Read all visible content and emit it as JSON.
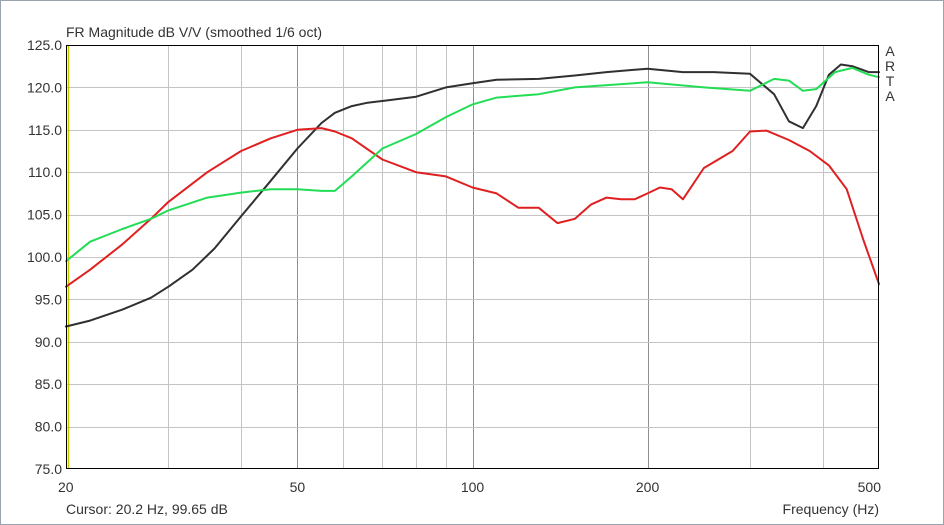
{
  "window": {
    "title": "FR Magnitude dB V/V (smoothed 1/6 oct)",
    "cursor_readout": "Cursor: 20.2 Hz, 99.65 dB",
    "brand_letters": [
      "A",
      "R",
      "T",
      "A"
    ]
  },
  "chart_data": {
    "type": "line",
    "title": "FR Magnitude dB V/V (smoothed 1/6 oct)",
    "xlabel": "Frequency (Hz)",
    "ylabel": "",
    "x_scale": "log",
    "xlim": [
      20,
      500
    ],
    "ylim": [
      75,
      125
    ],
    "grid": true,
    "x_ticks": [
      20,
      50,
      100,
      200,
      500
    ],
    "x_tick_labels": [
      "20",
      "50",
      "100",
      "200",
      "500"
    ],
    "y_ticks": [
      75,
      80,
      85,
      90,
      95,
      100,
      105,
      110,
      115,
      120,
      125
    ],
    "y_tick_labels": [
      "75.0",
      "80.0",
      "85.0",
      "90.0",
      "95.0",
      "100.0",
      "105.0",
      "110.0",
      "115.0",
      "120.0",
      "125.0"
    ],
    "cursor": {
      "x": 20.2,
      "color": "#c8c800"
    },
    "series": [
      {
        "color": "#303030",
        "x": [
          20,
          22,
          25,
          28,
          30,
          33,
          36,
          40,
          45,
          50,
          55,
          58,
          62,
          66,
          70,
          80,
          90,
          100,
          110,
          130,
          150,
          170,
          200,
          230,
          260,
          300,
          330,
          350,
          370,
          390,
          410,
          430,
          450,
          480,
          500
        ],
        "y": [
          91.8,
          92.5,
          93.8,
          95.2,
          96.5,
          98.5,
          101.0,
          104.8,
          109.0,
          112.8,
          115.8,
          117.0,
          117.8,
          118.2,
          118.4,
          118.9,
          120.0,
          120.5,
          120.9,
          121.0,
          121.4,
          121.8,
          122.2,
          121.8,
          121.8,
          121.6,
          119.2,
          116.0,
          115.2,
          117.8,
          121.5,
          122.7,
          122.5,
          121.8,
          121.8
        ]
      },
      {
        "color": "#e02020",
        "x": [
          20,
          22,
          25,
          28,
          30,
          35,
          40,
          45,
          50,
          55,
          58,
          62,
          70,
          80,
          90,
          100,
          110,
          120,
          130,
          140,
          150,
          160,
          170,
          180,
          190,
          200,
          210,
          220,
          230,
          250,
          280,
          300,
          320,
          350,
          380,
          410,
          440,
          470,
          500
        ],
        "y": [
          96.5,
          98.5,
          101.5,
          104.5,
          106.5,
          110.0,
          112.5,
          114.0,
          115.0,
          115.2,
          114.8,
          114.0,
          111.5,
          110.0,
          109.5,
          108.2,
          107.5,
          105.8,
          105.8,
          104.0,
          104.5,
          106.2,
          107.0,
          106.8,
          106.8,
          107.5,
          108.2,
          108.0,
          106.8,
          110.5,
          112.5,
          114.8,
          114.9,
          113.8,
          112.5,
          110.8,
          108.0,
          102.0,
          96.8
        ]
      },
      {
        "color": "#22dd55",
        "x": [
          20,
          22,
          25,
          28,
          30,
          35,
          40,
          45,
          50,
          55,
          58,
          62,
          70,
          80,
          90,
          100,
          110,
          130,
          150,
          200,
          250,
          300,
          330,
          350,
          370,
          390,
          420,
          450,
          480,
          500
        ],
        "y": [
          99.5,
          101.8,
          103.3,
          104.5,
          105.5,
          107.0,
          107.6,
          108.0,
          108.0,
          107.8,
          107.8,
          109.5,
          112.8,
          114.5,
          116.5,
          118.0,
          118.8,
          119.2,
          120.0,
          120.6,
          120.0,
          119.6,
          121.0,
          120.8,
          119.6,
          119.8,
          121.8,
          122.3,
          121.5,
          121.2
        ]
      }
    ]
  }
}
